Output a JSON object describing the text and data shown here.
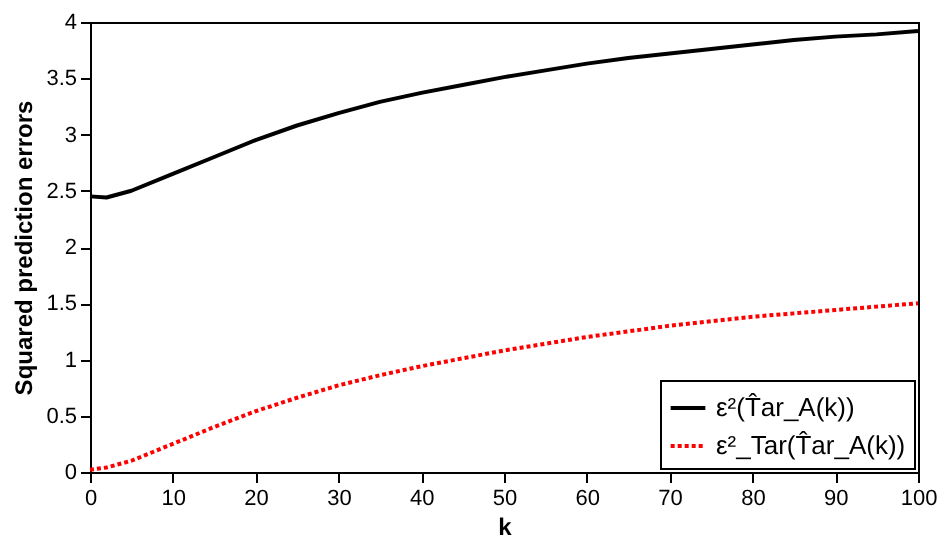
{
  "chart_data": {
    "type": "line",
    "xlabel": "k",
    "ylabel": "Squared prediction errors",
    "x": [
      0,
      2,
      5,
      10,
      15,
      20,
      25,
      30,
      35,
      40,
      45,
      50,
      55,
      60,
      65,
      70,
      75,
      80,
      85,
      90,
      95,
      100
    ],
    "series": [
      {
        "name": "ε²(T̂ar_A(k))",
        "color": "#000000",
        "line_style": "solid",
        "values": [
          2.45,
          2.44,
          2.5,
          2.65,
          2.8,
          2.95,
          3.08,
          3.19,
          3.29,
          3.37,
          3.44,
          3.51,
          3.57,
          3.63,
          3.68,
          3.72,
          3.76,
          3.8,
          3.84,
          3.87,
          3.89,
          3.92
        ]
      },
      {
        "name": "ε²_Tar(T̂ar_A(k))",
        "color": "#ff0000",
        "line_style": "dotted",
        "values": [
          0.02,
          0.04,
          0.1,
          0.25,
          0.4,
          0.54,
          0.66,
          0.77,
          0.86,
          0.94,
          1.01,
          1.08,
          1.14,
          1.2,
          1.25,
          1.3,
          1.34,
          1.38,
          1.41,
          1.44,
          1.47,
          1.5
        ]
      }
    ],
    "xlim": [
      0,
      100
    ],
    "xticks": [
      0,
      10,
      20,
      30,
      40,
      50,
      60,
      70,
      80,
      90,
      100
    ],
    "ylim": [
      0,
      4
    ],
    "yticks": [
      0,
      0.5,
      1,
      1.5,
      2,
      2.5,
      3,
      3.5,
      4
    ],
    "grid": false,
    "legend": "bottom right",
    "marker": "none"
  }
}
